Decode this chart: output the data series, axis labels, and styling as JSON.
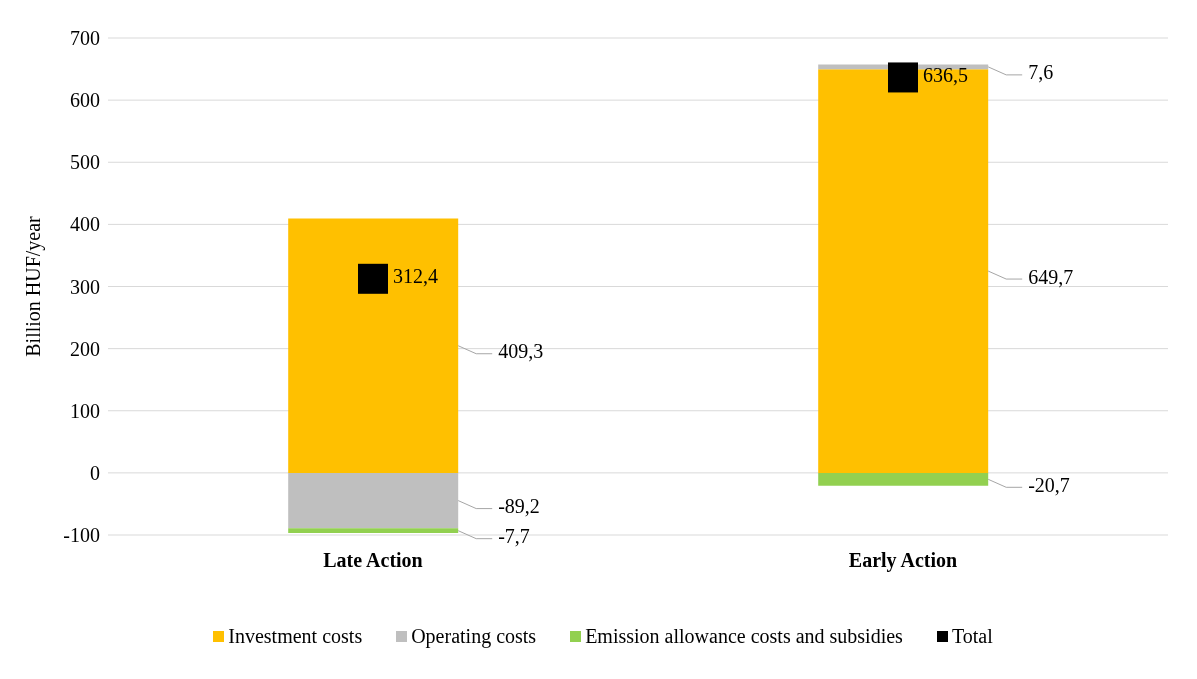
{
  "chart_data": {
    "type": "bar",
    "stacked": true,
    "ylabel": "Billion HUF/year",
    "categories": [
      "Late Action",
      "Early Action"
    ],
    "ylim": [
      -100,
      700
    ],
    "yticks": [
      -100,
      0,
      100,
      200,
      300,
      400,
      500,
      600,
      700
    ],
    "grid": "y",
    "legend": "bottom",
    "series": [
      {
        "name": "Investment costs",
        "color": "#ffc000",
        "values": [
          409.3,
          649.7
        ],
        "value_labels": [
          "409,3",
          "649,7"
        ]
      },
      {
        "name": "Operating costs",
        "color": "#bfbfbf",
        "values": [
          -89.2,
          7.6
        ],
        "value_labels": [
          "-89,2",
          "7,6"
        ]
      },
      {
        "name": "Emission allowance costs and subsidies",
        "color": "#92d050",
        "values": [
          -7.7,
          -20.7
        ],
        "value_labels": [
          "-7,7",
          "-20,7"
        ]
      },
      {
        "name": "Total",
        "type": "scatter",
        "marker": "square",
        "color": "#000000",
        "x": [
          "Late Action",
          "Early Action"
        ],
        "values": [
          312.4,
          636.5
        ],
        "value_labels": [
          "312,4",
          "636,5"
        ]
      }
    ]
  }
}
